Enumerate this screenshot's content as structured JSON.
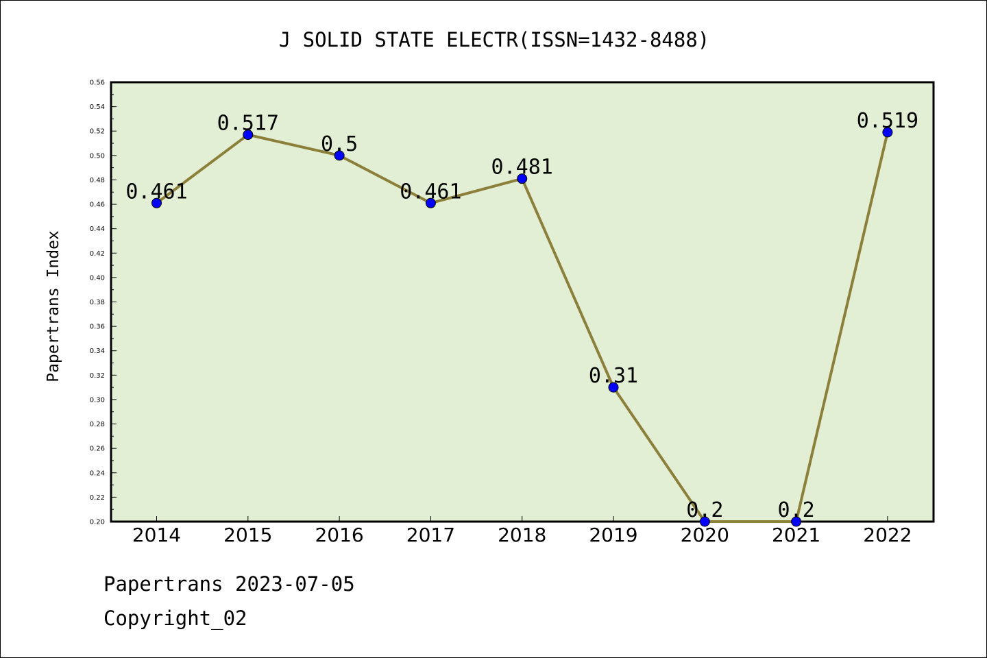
{
  "chart_data": {
    "type": "line",
    "title": "J SOLID STATE ELECTR(ISSN=1432-8488)",
    "xlabel": "",
    "ylabel": "Papertrans Index",
    "categories": [
      "2014",
      "2015",
      "2016",
      "2017",
      "2018",
      "2019",
      "2020",
      "2021",
      "2022"
    ],
    "series": [
      {
        "values": [
          0.461,
          0.517,
          0.5,
          0.461,
          0.481,
          0.31,
          0.2,
          0.2,
          0.519
        ],
        "labels": [
          "0.461",
          "0.517",
          "0.5",
          "0.461",
          "0.481",
          "0.31",
          "0.2",
          "0.2",
          "0.519"
        ]
      }
    ],
    "ylim": [
      0.2,
      0.56
    ],
    "yticks": [
      "0.20",
      "0.22",
      "0.24",
      "0.26",
      "0.28",
      "0.30",
      "0.32",
      "0.34",
      "0.36",
      "0.38",
      "0.40",
      "0.42",
      "0.44",
      "0.46",
      "0.48",
      "0.50",
      "0.52",
      "0.54",
      "0.56"
    ],
    "grid": false,
    "legend": "none"
  },
  "footer": {
    "line1": "Papertrans 2023-07-05",
    "line2": "Copyright_02"
  },
  "colors": {
    "plot_background": "#e2efd5",
    "line": "#8c7f3a",
    "marker": "#0000ff"
  }
}
